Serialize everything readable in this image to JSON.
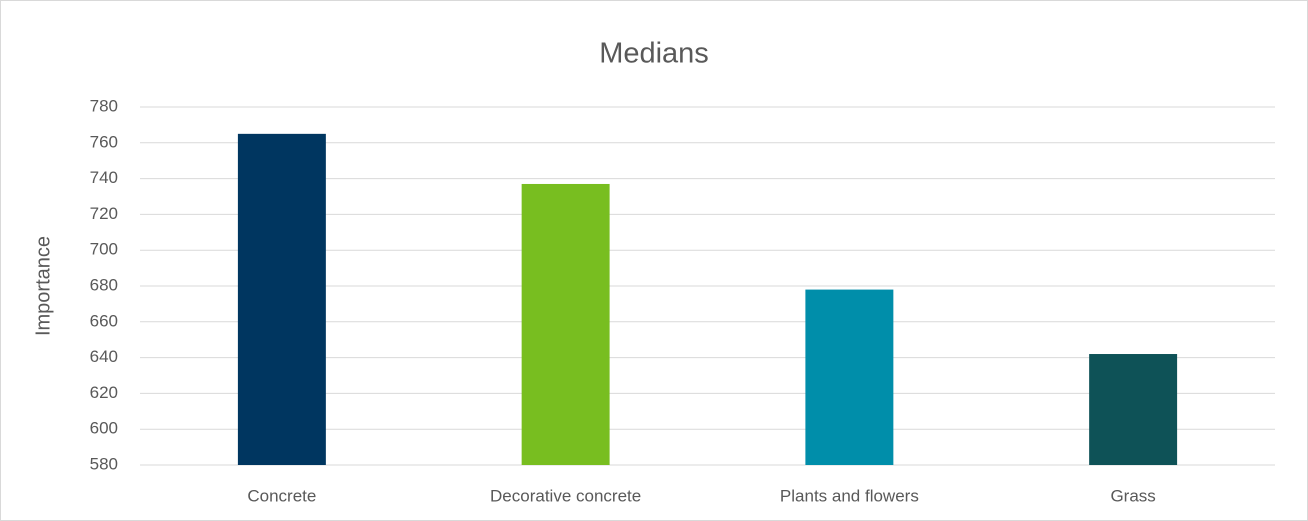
{
  "chart_data": {
    "type": "bar",
    "title": "Medians",
    "y_label": "Importance",
    "categories": [
      "Concrete",
      "Decorative concrete",
      "Plants and flowers",
      "Grass"
    ],
    "values": [
      765,
      737,
      678,
      642
    ],
    "colors": [
      "#003660",
      "#78be20",
      "#008eaa",
      "#0e5257"
    ],
    "ylim": [
      580,
      780
    ],
    "yticks": [
      580,
      600,
      620,
      640,
      660,
      680,
      700,
      720,
      740,
      760,
      780
    ],
    "grid": true
  }
}
